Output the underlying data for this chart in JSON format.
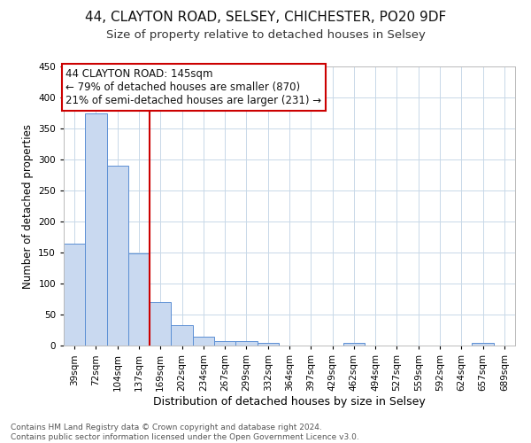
{
  "title1": "44, CLAYTON ROAD, SELSEY, CHICHESTER, PO20 9DF",
  "title2": "Size of property relative to detached houses in Selsey",
  "xlabel": "Distribution of detached houses by size in Selsey",
  "ylabel": "Number of detached properties",
  "categories": [
    "39sqm",
    "72sqm",
    "104sqm",
    "137sqm",
    "169sqm",
    "202sqm",
    "234sqm",
    "267sqm",
    "299sqm",
    "332sqm",
    "364sqm",
    "397sqm",
    "429sqm",
    "462sqm",
    "494sqm",
    "527sqm",
    "559sqm",
    "592sqm",
    "624sqm",
    "657sqm",
    "689sqm"
  ],
  "values": [
    165,
    375,
    290,
    148,
    70,
    33,
    15,
    7,
    7,
    5,
    0,
    0,
    0,
    4,
    0,
    0,
    0,
    0,
    0,
    4,
    0
  ],
  "bar_color": "#c9d9f0",
  "bar_edge_color": "#5b8fd4",
  "vline_x": 3.5,
  "vline_color": "#cc0000",
  "annotation_line1": "44 CLAYTON ROAD: 145sqm",
  "annotation_line2": "← 79% of detached houses are smaller (870)",
  "annotation_line3": "21% of semi-detached houses are larger (231) →",
  "annotation_box_color": "#ffffff",
  "annotation_box_edge": "#cc0000",
  "ylim": [
    0,
    450
  ],
  "yticks": [
    0,
    50,
    100,
    150,
    200,
    250,
    300,
    350,
    400,
    450
  ],
  "footer": "Contains HM Land Registry data © Crown copyright and database right 2024.\nContains public sector information licensed under the Open Government Licence v3.0.",
  "bg_color": "#ffffff",
  "grid_color": "#c8d8e8",
  "title1_fontsize": 11,
  "title2_fontsize": 9.5,
  "xlabel_fontsize": 9,
  "ylabel_fontsize": 8.5,
  "footer_fontsize": 6.5,
  "annotation_fontsize": 8.5,
  "tick_fontsize": 7.5
}
